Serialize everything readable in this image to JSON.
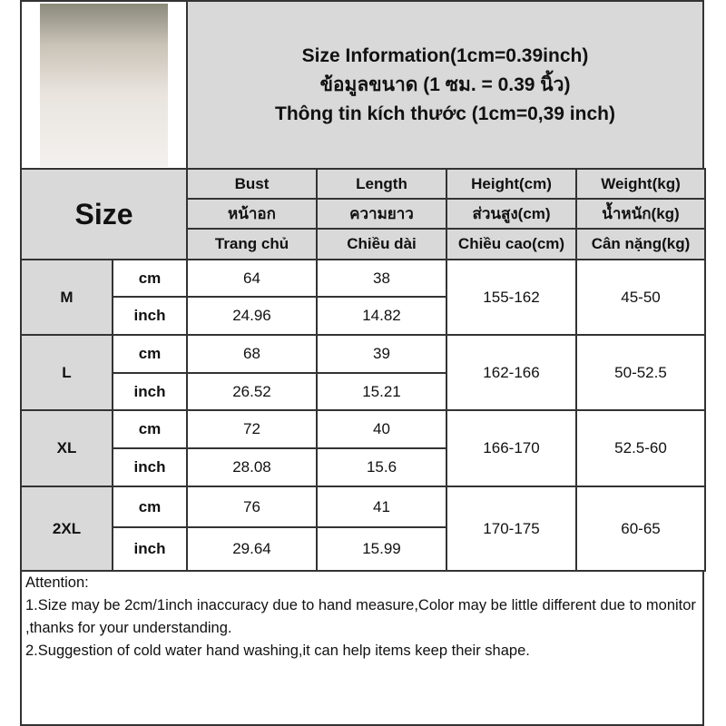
{
  "header": {
    "title_lines": [
      "Size Information(1cm=0.39inch)",
      "ข้อมูลขนาด (1 ซม. = 0.39 นิ้ว)",
      "Thông tin kích thước (1cm=0,39 inch)"
    ]
  },
  "table": {
    "size_label": "Size",
    "columns": [
      {
        "en": "Bust",
        "th": "หน้าอก",
        "vi": "Trang chủ"
      },
      {
        "en": "Length",
        "th": "ความยาว",
        "vi": "Chiều dài"
      },
      {
        "en": "Height(cm)",
        "th": "ส่วนสูง(cm)",
        "vi": "Chiều cao(cm)"
      },
      {
        "en": "Weight(kg)",
        "th": "น้ำหนัก(kg)",
        "vi": "Cân nặng(kg)"
      }
    ],
    "rows": [
      {
        "size": "M",
        "cm_label": "cm",
        "inch_label": "inch",
        "bust_cm": "64",
        "length_cm": "38",
        "bust_inch": "24.96",
        "length_inch": "14.82",
        "height": "155-162",
        "weight": "45-50"
      },
      {
        "size": "L",
        "cm_label": "cm",
        "inch_label": "inch",
        "bust_cm": "68",
        "length_cm": "39",
        "bust_inch": "26.52",
        "length_inch": "15.21",
        "height": "162-166",
        "weight": "50-52.5"
      },
      {
        "size": "XL",
        "cm_label": "cm",
        "inch_label": "inch",
        "bust_cm": "72",
        "length_cm": "40",
        "bust_inch": "28.08",
        "length_inch": "15.6",
        "height": "166-170",
        "weight": "52.5-60"
      },
      {
        "size": "2XL",
        "cm_label": "cm",
        "inch_label": "inch",
        "bust_cm": "76",
        "length_cm": "41",
        "bust_inch": "29.64",
        "length_inch": "15.99",
        "height": "170-175",
        "weight": "60-65"
      }
    ]
  },
  "attention": {
    "title": "Attention:",
    "notes": [
      "1.Size may be 2cm/1inch inaccuracy due to hand measure,Color may be little different due to monitor ,thanks for your understanding.",
      "2.Suggestion of cold water hand washing,it can help items keep their shape."
    ]
  }
}
